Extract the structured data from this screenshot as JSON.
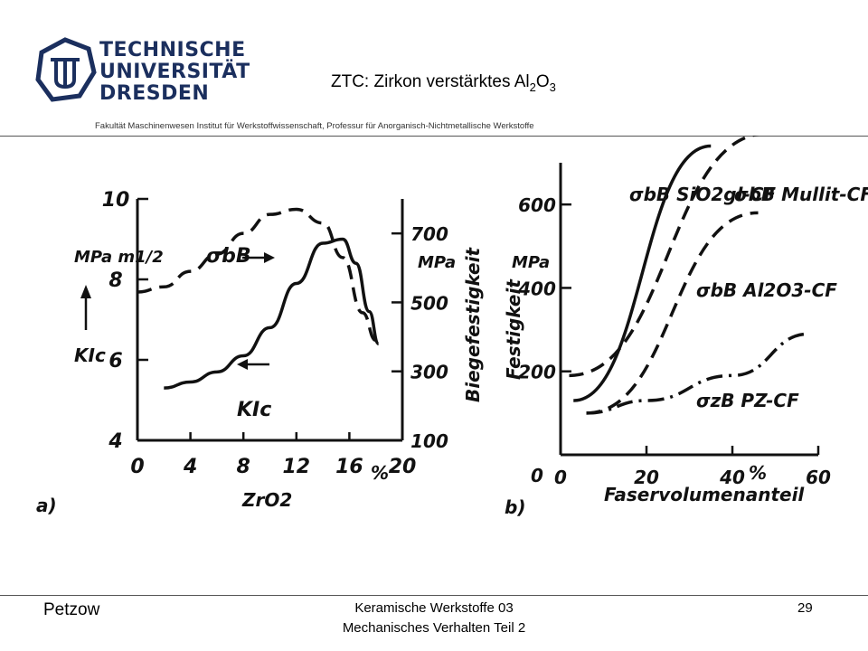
{
  "header": {
    "university_lines": [
      "TECHNISCHE",
      "UNIVERSITÄT",
      "DRESDEN"
    ],
    "title_prefix": "ZTC: Zirkon verstärktes Al",
    "title_sub1": "2",
    "title_mid": "O",
    "title_sub2": "3",
    "faculty": "Fakultät Maschinenwesen Institut für Werkstoffwissenschaft, Professur für Anorganisch-Nichtmetallische Werkstoffe",
    "brand_color": "#1b2f5e"
  },
  "footer": {
    "author": "Petzow",
    "course_line1": "Keramische Werkstoffe 03",
    "course_line2": "Mechanisches Verhalten Teil 2",
    "page": "29"
  },
  "chart_data": [
    {
      "type": "line",
      "panel_label": "a)",
      "xlabel": "ZrO2",
      "x_unit": "%",
      "xlim": [
        0,
        20
      ],
      "x_ticks": [
        0,
        4,
        8,
        12,
        16,
        20
      ],
      "left_axis": {
        "label": "KIc",
        "unit": "MPa m1/2",
        "ylim": [
          4,
          10
        ],
        "ticks": [
          4,
          6,
          8,
          10
        ]
      },
      "right_axis": {
        "label": "Biegefestigkeit",
        "unit": "MPa",
        "ylim": [
          100,
          800
        ],
        "ticks": [
          100,
          300,
          500,
          700
        ]
      },
      "series": [
        {
          "name": "σbB",
          "axis": "right",
          "style": "dashed",
          "x": [
            0,
            2,
            4,
            6,
            8,
            10,
            12,
            14,
            15.5,
            17,
            18
          ],
          "y": [
            530,
            545,
            590,
            640,
            700,
            755,
            770,
            730,
            630,
            470,
            390
          ]
        },
        {
          "name": "KIc",
          "axis": "left",
          "style": "solid",
          "x": [
            2,
            4,
            6,
            8,
            10,
            12,
            14,
            15.5,
            16.5,
            17.5,
            18.2
          ],
          "y": [
            5.3,
            5.45,
            5.7,
            6.1,
            6.8,
            7.9,
            8.9,
            9.0,
            8.4,
            7.2,
            6.4
          ]
        }
      ]
    },
    {
      "type": "line",
      "panel_label": "b)",
      "xlabel": "Faservolumenanteil",
      "x_unit": "%",
      "xlim": [
        0,
        60
      ],
      "x_ticks": [
        0,
        20,
        40,
        60
      ],
      "ylabel": "Festigkeit",
      "y_unit": "MPa",
      "ylim": [
        0,
        700
      ],
      "y_ticks": [
        0,
        200,
        400,
        600
      ],
      "series": [
        {
          "name": "σbB SiO2gl-CF",
          "style": "solid",
          "x": [
            3,
            35
          ],
          "y": [
            130,
            740
          ]
        },
        {
          "name": "σbB Mullit-CF",
          "style": "dashed",
          "x": [
            2,
            48
          ],
          "y": [
            190,
            770
          ]
        },
        {
          "name": "σbB Al2O3-CF",
          "style": "dashed",
          "x": [
            6,
            46
          ],
          "y": [
            100,
            580
          ]
        },
        {
          "name": "σzB PZ-CF",
          "style": "dashdot",
          "x": [
            6,
            20,
            40,
            58
          ],
          "y": [
            100,
            130,
            190,
            290
          ]
        }
      ]
    }
  ]
}
